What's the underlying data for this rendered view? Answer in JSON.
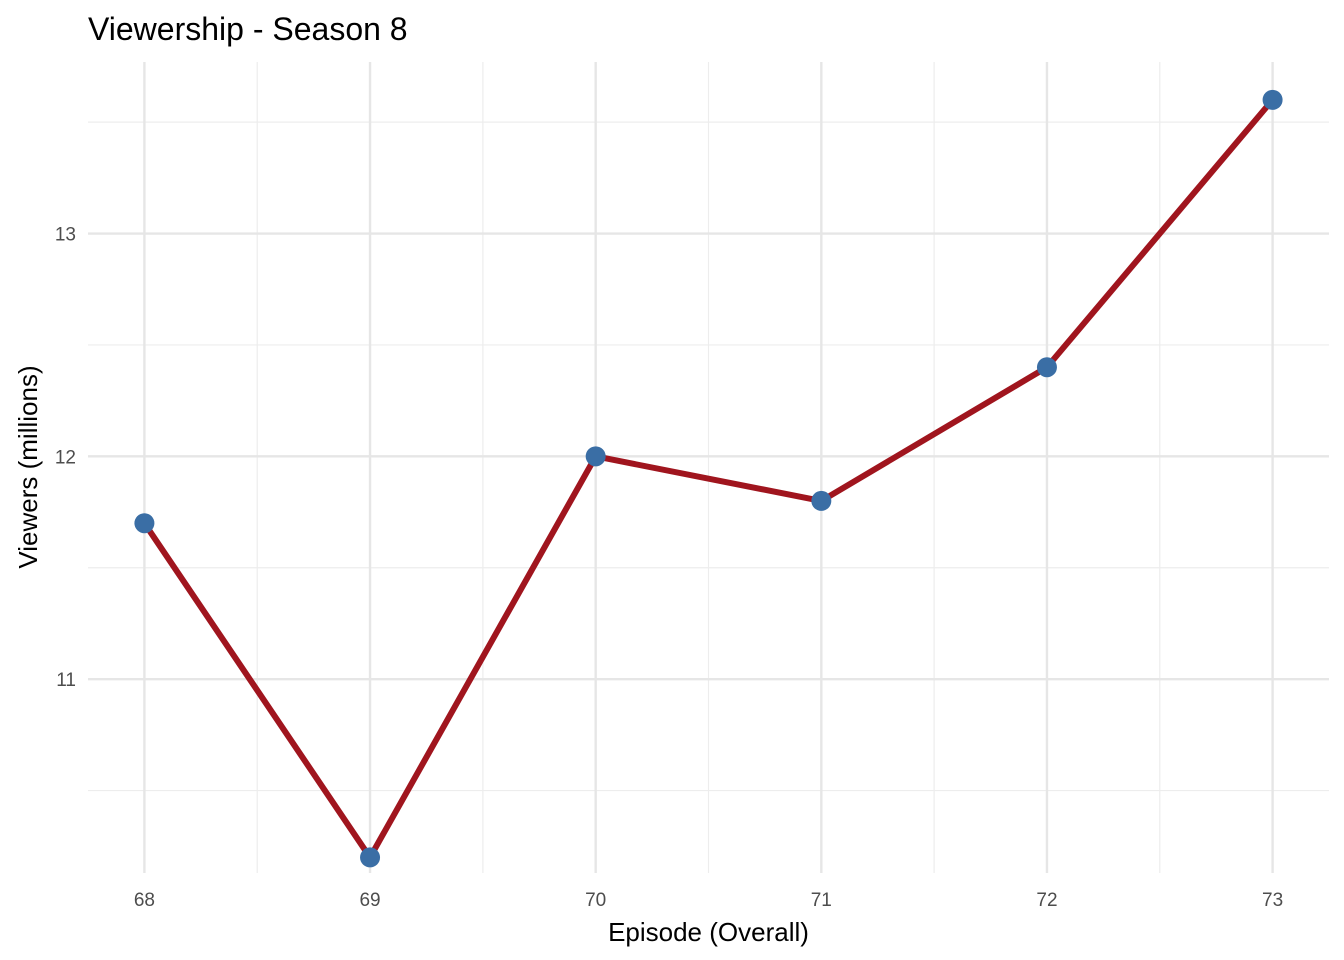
{
  "chart_data": {
    "type": "line",
    "title": "Viewership - Season 8",
    "xlabel": "Episode (Overall)",
    "ylabel": "Viewers (millions)",
    "x": [
      68,
      69,
      70,
      71,
      72,
      73
    ],
    "series": [
      {
        "values": [
          11.7,
          10.2,
          12.0,
          11.8,
          12.4,
          13.6
        ]
      }
    ],
    "xlim": [
      67.75,
      73.25
    ],
    "ylim": [
      10.13,
      13.77
    ],
    "x_ticks": [
      "68",
      "69",
      "70",
      "71",
      "72",
      "73"
    ],
    "y_ticks": [
      "11",
      "12",
      "13"
    ],
    "grid": true,
    "legend": "none",
    "colors": {
      "line": "#a0151e",
      "point": "#3a6ea5",
      "grid": "#e6e6e6"
    }
  }
}
